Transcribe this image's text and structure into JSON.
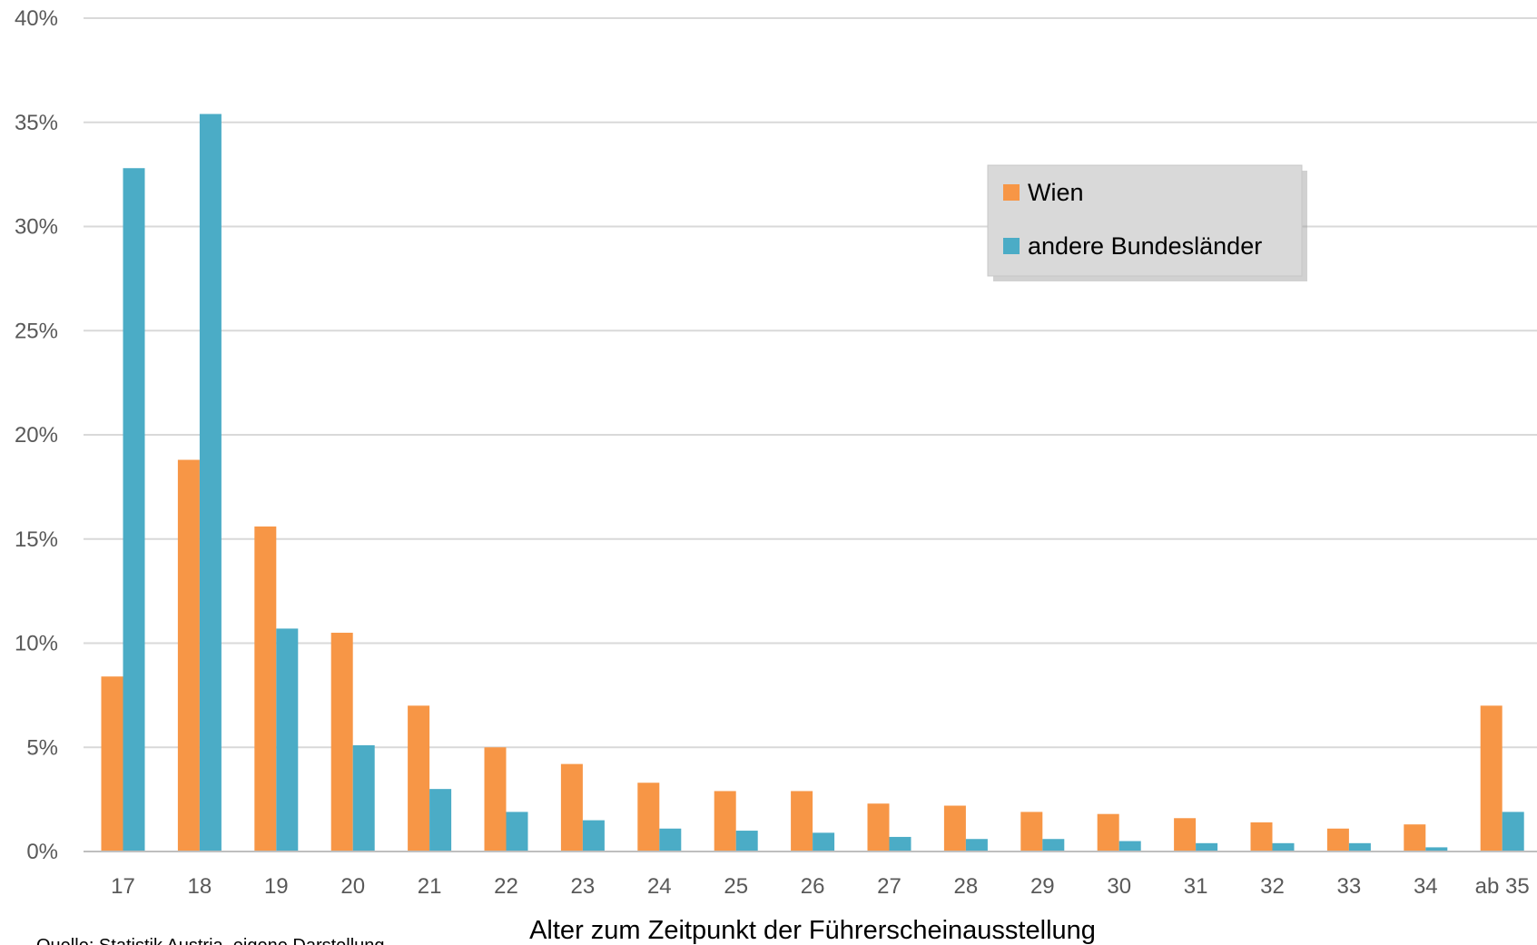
{
  "chart_data": {
    "type": "bar",
    "title": "",
    "xlabel": "Alter zum Zeitpunkt der Führerscheinausstellung",
    "ylabel": "",
    "ylim": [
      0,
      40
    ],
    "yticks": [
      "0%",
      "5%",
      "10%",
      "15%",
      "20%",
      "25%",
      "30%",
      "35%",
      "40%"
    ],
    "grid": true,
    "legend_position": "top-right",
    "categories": [
      "17",
      "18",
      "19",
      "20",
      "21",
      "22",
      "23",
      "24",
      "25",
      "26",
      "27",
      "28",
      "29",
      "30",
      "31",
      "32",
      "33",
      "34",
      "ab 35"
    ],
    "series": [
      {
        "name": "Wien",
        "color": "#f79646",
        "values": [
          8.4,
          18.8,
          15.6,
          10.5,
          7.0,
          5.0,
          4.2,
          3.3,
          2.9,
          2.9,
          2.3,
          2.2,
          1.9,
          1.8,
          1.6,
          1.4,
          1.1,
          1.3,
          7.0
        ]
      },
      {
        "name": "andere Bundesländer",
        "color": "#4bacc6",
        "values": [
          32.8,
          35.4,
          10.7,
          5.1,
          3.0,
          1.9,
          1.5,
          1.1,
          1.0,
          0.9,
          0.7,
          0.6,
          0.6,
          0.5,
          0.4,
          0.4,
          0.4,
          0.2,
          1.9
        ]
      }
    ],
    "source": "Quelle: Statistik Austria, eigene Darstellung"
  }
}
